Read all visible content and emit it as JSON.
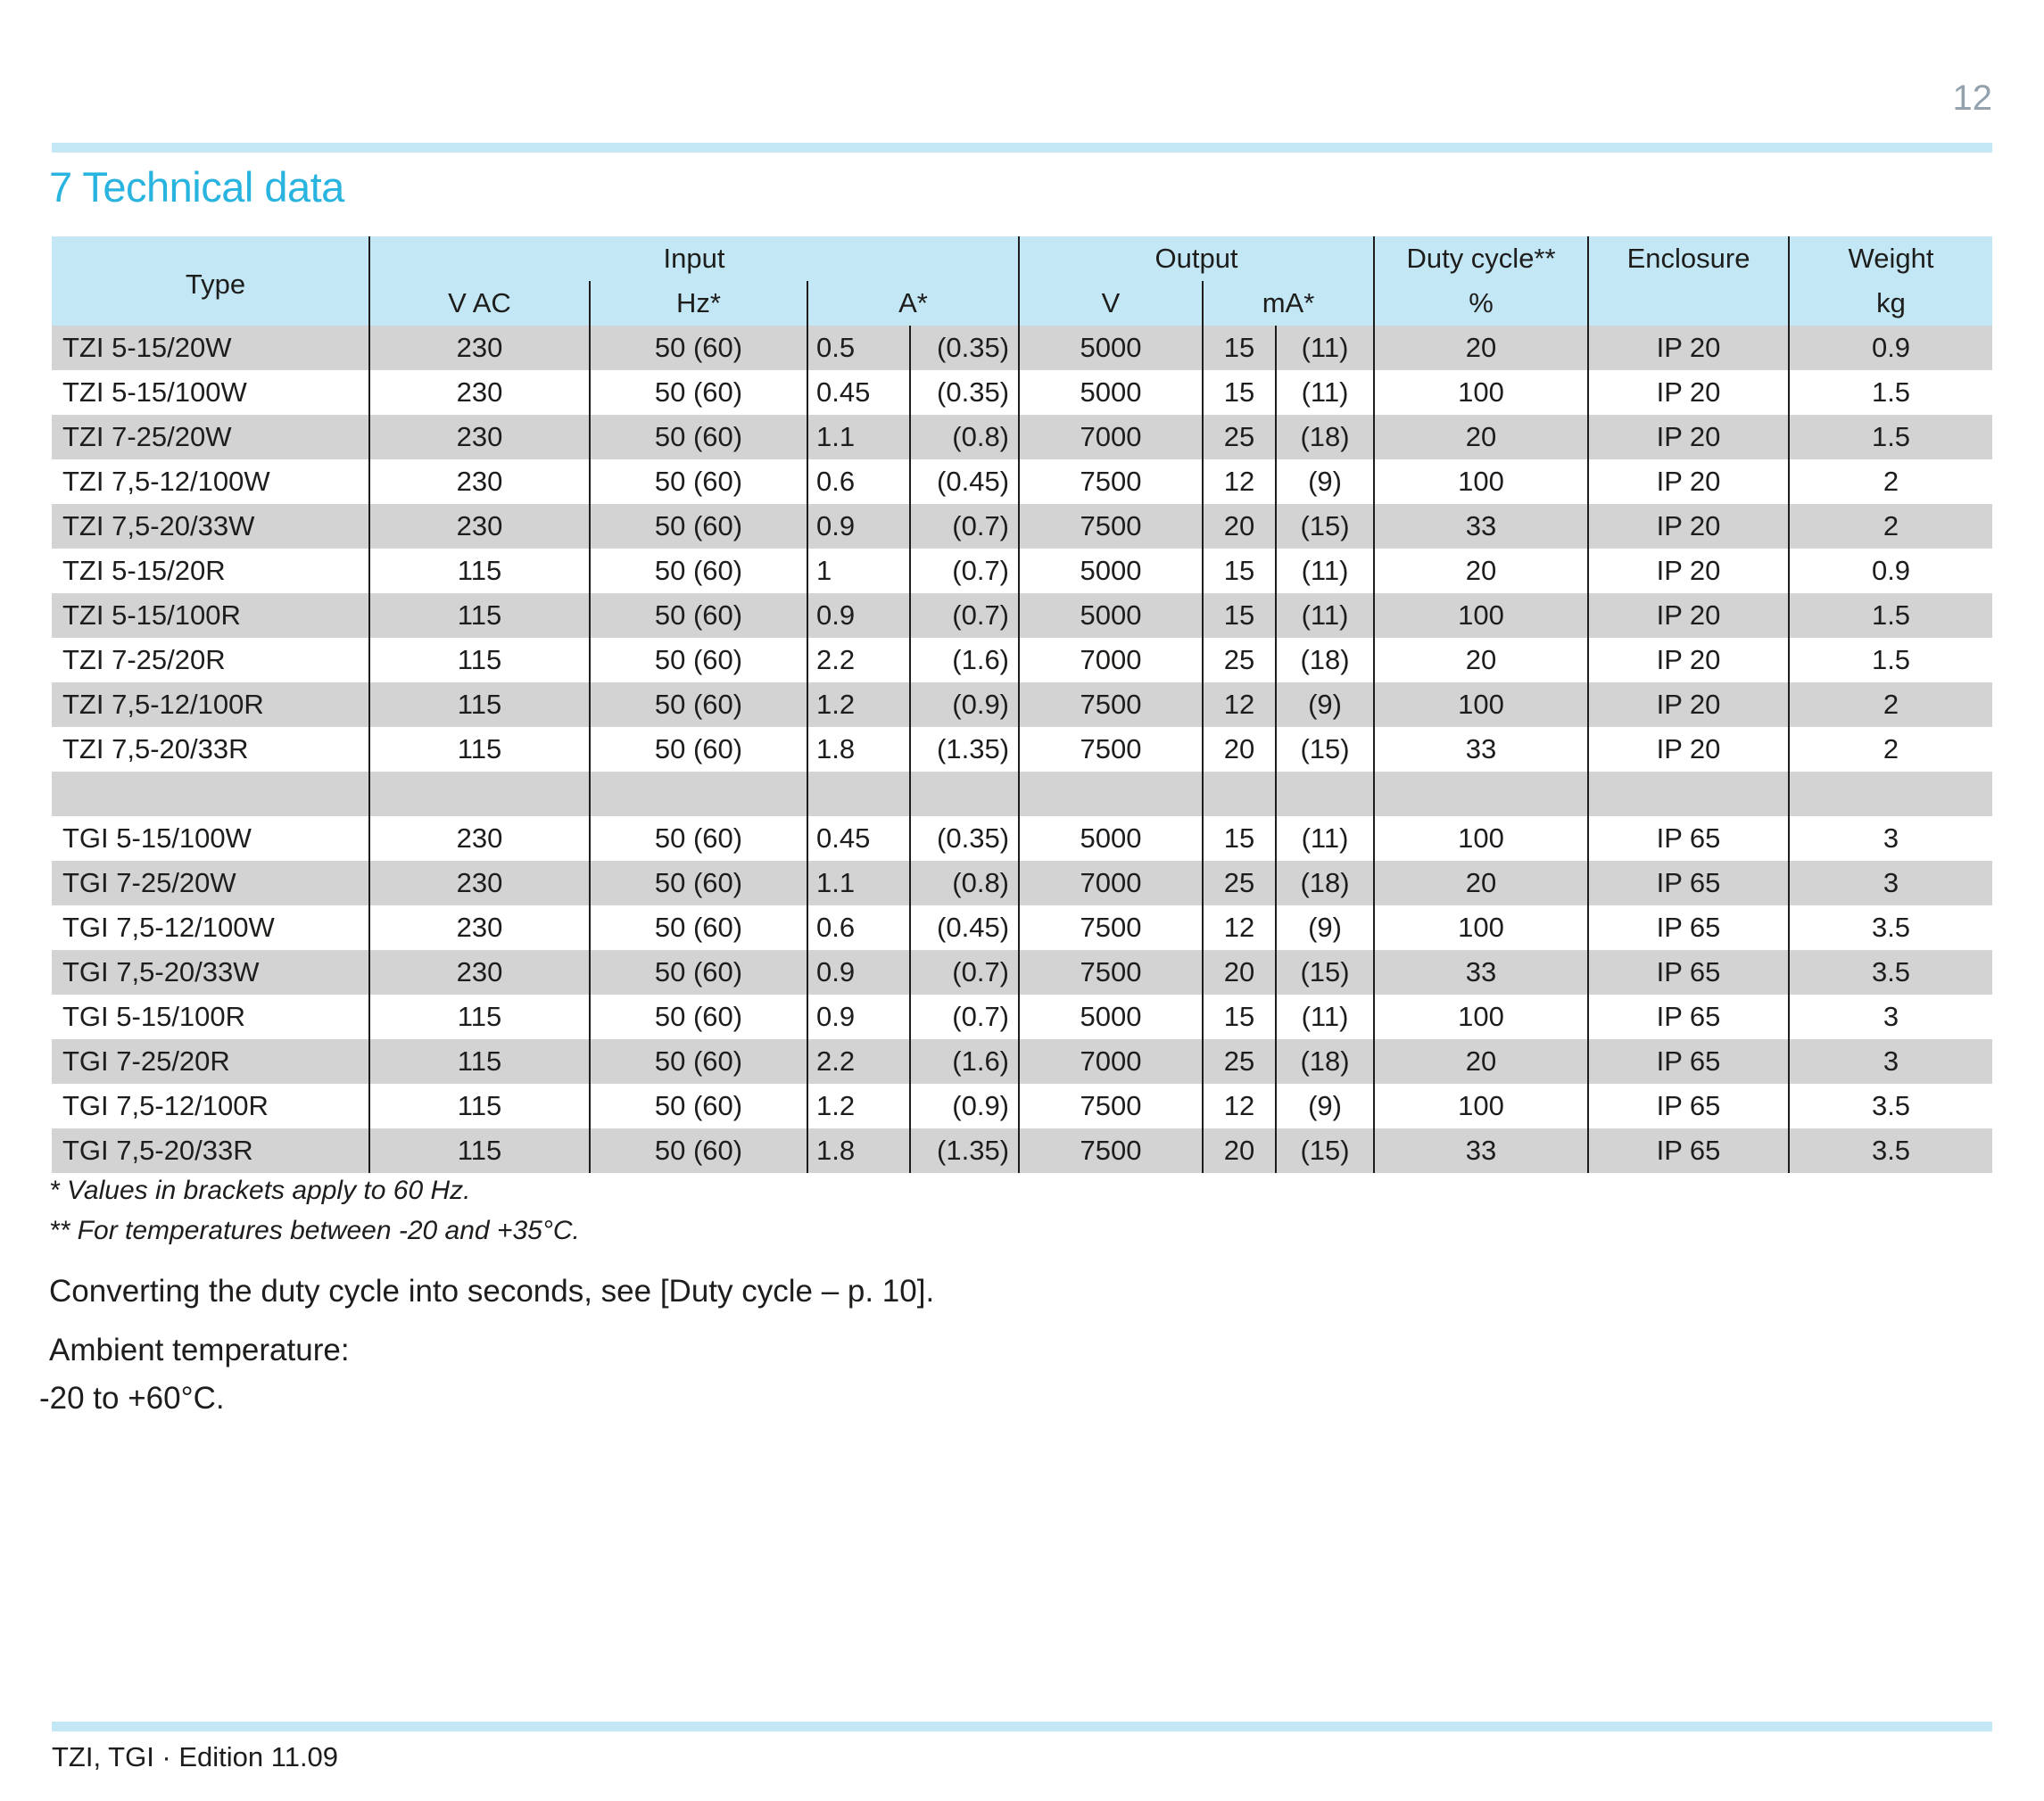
{
  "page": {
    "number": "12"
  },
  "section": {
    "title": "7 Technical data"
  },
  "table": {
    "header": {
      "type": "Type",
      "input": "Input",
      "output": "Output",
      "duty_cycle": "Duty cycle**",
      "enclosure": "Enclosure",
      "weight": "Weight",
      "v_ac": "V AC",
      "hz": "Hz*",
      "a": "A*",
      "v": "V",
      "ma": "mA*",
      "percent": "%",
      "kg": "kg"
    },
    "groups": [
      {
        "rows": [
          [
            "TZI 5-15/20W",
            "230",
            "50 (60)",
            "0.5",
            "(0.35)",
            "5000",
            "15",
            "(11)",
            "20",
            "IP 20",
            "0.9"
          ],
          [
            "TZI 5-15/100W",
            "230",
            "50 (60)",
            "0.45",
            "(0.35)",
            "5000",
            "15",
            "(11)",
            "100",
            "IP 20",
            "1.5"
          ],
          [
            "TZI 7-25/20W",
            "230",
            "50 (60)",
            "1.1",
            "(0.8)",
            "7000",
            "25",
            "(18)",
            "20",
            "IP 20",
            "1.5"
          ],
          [
            "TZI 7,5-12/100W",
            "230",
            "50 (60)",
            "0.6",
            "(0.45)",
            "7500",
            "12",
            "(9)",
            "100",
            "IP 20",
            "2"
          ],
          [
            "TZI 7,5-20/33W",
            "230",
            "50 (60)",
            "0.9",
            "(0.7)",
            "7500",
            "20",
            "(15)",
            "33",
            "IP 20",
            "2"
          ],
          [
            "TZI 5-15/20R",
            "115",
            "50 (60)",
            "1",
            "(0.7)",
            "5000",
            "15",
            "(11)",
            "20",
            "IP 20",
            "0.9"
          ],
          [
            "TZI 5-15/100R",
            "115",
            "50 (60)",
            "0.9",
            "(0.7)",
            "5000",
            "15",
            "(11)",
            "100",
            "IP 20",
            "1.5"
          ],
          [
            "TZI 7-25/20R",
            "115",
            "50 (60)",
            "2.2",
            "(1.6)",
            "7000",
            "25",
            "(18)",
            "20",
            "IP 20",
            "1.5"
          ],
          [
            "TZI 7,5-12/100R",
            "115",
            "50 (60)",
            "1.2",
            "(0.9)",
            "7500",
            "12",
            "(9)",
            "100",
            "IP 20",
            "2"
          ],
          [
            "TZI 7,5-20/33R",
            "115",
            "50 (60)",
            "1.8",
            "(1.35)",
            "7500",
            "20",
            "(15)",
            "33",
            "IP 20",
            "2"
          ]
        ]
      },
      {
        "rows": [
          [
            "TGI 5-15/100W",
            "230",
            "50 (60)",
            "0.45",
            "(0.35)",
            "5000",
            "15",
            "(11)",
            "100",
            "IP 65",
            "3"
          ],
          [
            "TGI 7-25/20W",
            "230",
            "50 (60)",
            "1.1",
            "(0.8)",
            "7000",
            "25",
            "(18)",
            "20",
            "IP 65",
            "3"
          ],
          [
            "TGI 7,5-12/100W",
            "230",
            "50 (60)",
            "0.6",
            "(0.45)",
            "7500",
            "12",
            "(9)",
            "100",
            "IP 65",
            "3.5"
          ],
          [
            "TGI 7,5-20/33W",
            "230",
            "50 (60)",
            "0.9",
            "(0.7)",
            "7500",
            "20",
            "(15)",
            "33",
            "IP 65",
            "3.5"
          ],
          [
            "TGI 5-15/100R",
            "115",
            "50 (60)",
            "0.9",
            "(0.7)",
            "5000",
            "15",
            "(11)",
            "100",
            "IP 65",
            "3"
          ],
          [
            "TGI 7-25/20R",
            "115",
            "50 (60)",
            "2.2",
            "(1.6)",
            "7000",
            "25",
            "(18)",
            "20",
            "IP 65",
            "3"
          ],
          [
            "TGI 7,5-12/100R",
            "115",
            "50 (60)",
            "1.2",
            "(0.9)",
            "7500",
            "12",
            "(9)",
            "100",
            "IP 65",
            "3.5"
          ],
          [
            "TGI 7,5-20/33R",
            "115",
            "50 (60)",
            "1.8",
            "(1.35)",
            "7500",
            "20",
            "(15)",
            "33",
            "IP 65",
            "3.5"
          ]
        ]
      }
    ]
  },
  "footnotes": [
    "* Values in brackets apply to 60 Hz.",
    "** For temperatures between -20 and +35°C."
  ],
  "paragraphs": {
    "duty_cycle_note": "Converting the duty cycle into seconds, see [Duty cycle – p. 10].",
    "ambient_label": "Ambient temperature:",
    "ambient_range": "-20 to +60°C."
  },
  "footer": {
    "text": "TZI, TGI · Edition 11.09"
  }
}
